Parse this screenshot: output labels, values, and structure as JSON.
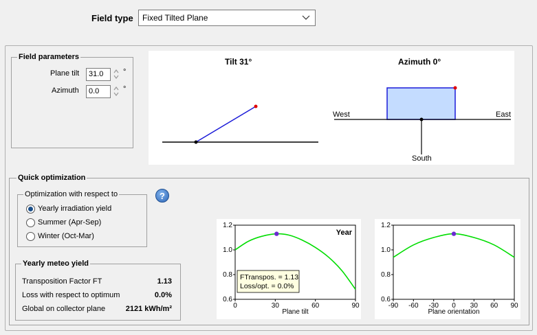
{
  "field_type": {
    "label": "Field type",
    "value": "Fixed Tilted Plane"
  },
  "field_parameters": {
    "title": "Field parameters",
    "plane_tilt": {
      "label": "Plane tilt",
      "value": "31.0",
      "unit": "°"
    },
    "azimuth": {
      "label": "Azimuth",
      "value": "0.0",
      "unit": "°"
    }
  },
  "diagram": {
    "tilt_title": "Tilt 31°",
    "azimuth_title": "Azimuth 0°",
    "west": "West",
    "east": "East",
    "south": "South"
  },
  "quick_optimization": {
    "title": "Quick optimization",
    "opt_group_title": "Optimization with respect to",
    "options": [
      {
        "label": "Yearly irradiation yield",
        "checked": true
      },
      {
        "label": "Summer (Apr-Sep)",
        "checked": false
      },
      {
        "label": "Winter (Oct-Mar)",
        "checked": false
      }
    ],
    "help_icon": "help-icon"
  },
  "meteo_yield": {
    "title": "Yearly meteo yield",
    "rows": [
      {
        "label": "Transposition Factor FT",
        "value": "1.13"
      },
      {
        "label": "Loss with respect to optimum",
        "value": "0.0%"
      },
      {
        "label": "Global on collector plane",
        "value": "2121 kWh/m²"
      }
    ]
  },
  "chart_data": [
    {
      "type": "line",
      "title": "Year",
      "xlabel": "Plane tilt",
      "ylabel": "",
      "xlim": [
        0,
        90
      ],
      "ylim": [
        0.6,
        1.2
      ],
      "xticks": [
        "0",
        "30",
        "60",
        "90"
      ],
      "yticks": [
        "0.6",
        "0.8",
        "1.0",
        "1.2"
      ],
      "x": [
        0,
        10,
        20,
        31,
        40,
        50,
        60,
        70,
        80,
        90
      ],
      "y": [
        1.0,
        1.07,
        1.11,
        1.13,
        1.12,
        1.08,
        1.02,
        0.94,
        0.83,
        0.68
      ],
      "marker": {
        "x": 31,
        "y": 1.13
      },
      "annotation": [
        "FTranspos. = 1.13",
        "Loss/opt. = 0.0%"
      ],
      "color": "#00dd00",
      "marker_color": "#6a2bd0"
    },
    {
      "type": "line",
      "title": "",
      "xlabel": "Plane orientation",
      "ylabel": "",
      "xlim": [
        -90,
        90
      ],
      "ylim": [
        0.6,
        1.2
      ],
      "xticks": [
        "-90",
        "-60",
        "-30",
        "0",
        "30",
        "60",
        "90"
      ],
      "yticks": [
        "0.6",
        "0.8",
        "1.0",
        "1.2"
      ],
      "x": [
        -90,
        -60,
        -30,
        0,
        30,
        60,
        90
      ],
      "y": [
        0.94,
        1.04,
        1.1,
        1.13,
        1.1,
        1.04,
        0.94
      ],
      "marker": {
        "x": 0,
        "y": 1.13
      },
      "color": "#00dd00",
      "marker_color": "#6a2bd0"
    }
  ]
}
